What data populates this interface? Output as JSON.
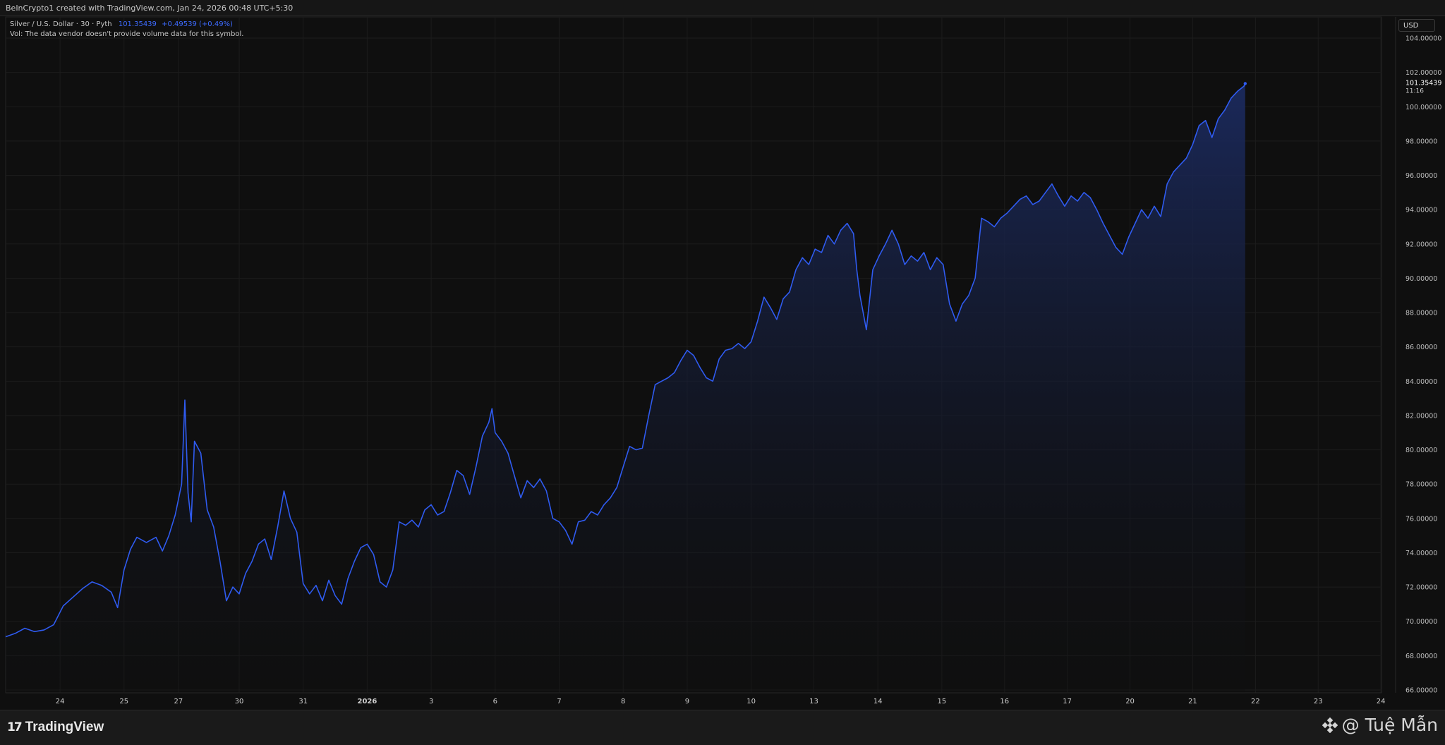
{
  "header": {
    "credit": "BeInCrypto1 created with TradingView.com, Jan 24, 2026 00:48 UTC+5:30"
  },
  "legend": {
    "symbol": "Silver / U.S. Dollar · 30 · Pyth",
    "price": "101.35439",
    "change": "+0.49539 (+0.49%)",
    "volume_note": "Vol: The data vendor doesn't provide volume data for this symbol."
  },
  "currency_button": "USD",
  "last_price": {
    "value": "101.35439",
    "countdown": "11:16"
  },
  "footer": {
    "brand": "TradingView",
    "watermark": "@ Tuệ Mẫn"
  },
  "colors": {
    "line": "#2f5bf0",
    "background": "#0f0f0f",
    "grid": "#1c1c1c",
    "fill_top": "#1b2a5e"
  },
  "chart_data": {
    "type": "area",
    "title": "",
    "xlabel": "",
    "ylabel": "",
    "ylim": [
      66,
      104
    ],
    "y_ticks": [
      "104.00000",
      "102.00000",
      "100.00000",
      "98.00000",
      "96.00000",
      "94.00000",
      "92.00000",
      "90.00000",
      "88.00000",
      "86.00000",
      "84.00000",
      "82.00000",
      "80.00000",
      "78.00000",
      "76.00000",
      "74.00000",
      "72.00000",
      "70.00000",
      "68.00000",
      "66.00000"
    ],
    "x_ticks": [
      {
        "label": "24",
        "x": 1.0
      },
      {
        "label": "25",
        "x": 2.0
      },
      {
        "label": "27",
        "x": 2.85
      },
      {
        "label": "30",
        "x": 3.8
      },
      {
        "label": "31",
        "x": 4.8
      },
      {
        "label": "2026",
        "x": 5.8
      },
      {
        "label": "3",
        "x": 6.8
      },
      {
        "label": "6",
        "x": 7.8
      },
      {
        "label": "7",
        "x": 8.8
      },
      {
        "label": "8",
        "x": 9.8
      },
      {
        "label": "9",
        "x": 10.8
      },
      {
        "label": "10",
        "x": 11.8
      },
      {
        "label": "13",
        "x": 12.78
      },
      {
        "label": "14",
        "x": 13.78
      },
      {
        "label": "15",
        "x": 14.78
      },
      {
        "label": "16",
        "x": 15.76
      },
      {
        "label": "17",
        "x": 16.74
      },
      {
        "label": "20",
        "x": 17.72
      },
      {
        "label": "21",
        "x": 18.7
      },
      {
        "label": "22",
        "x": 19.68
      },
      {
        "label": "23",
        "x": 20.66
      },
      {
        "label": "24",
        "x": 21.64
      }
    ],
    "xlim": [
      0.15,
      21.65
    ],
    "series": [
      {
        "name": "",
        "points": [
          [
            0.15,
            69.1
          ],
          [
            0.3,
            69.3
          ],
          [
            0.45,
            69.6
          ],
          [
            0.6,
            69.4
          ],
          [
            0.75,
            69.5
          ],
          [
            0.9,
            69.8
          ],
          [
            1.05,
            70.9
          ],
          [
            1.2,
            71.4
          ],
          [
            1.35,
            71.9
          ],
          [
            1.5,
            72.3
          ],
          [
            1.65,
            72.1
          ],
          [
            1.8,
            71.7
          ],
          [
            1.9,
            70.8
          ],
          [
            2.0,
            73.0
          ],
          [
            2.1,
            74.2
          ],
          [
            2.2,
            74.9
          ],
          [
            2.35,
            74.6
          ],
          [
            2.5,
            74.9
          ],
          [
            2.6,
            74.1
          ],
          [
            2.7,
            75.0
          ],
          [
            2.8,
            76.2
          ],
          [
            2.9,
            78.0
          ],
          [
            2.95,
            82.9
          ],
          [
            3.0,
            77.5
          ],
          [
            3.05,
            75.8
          ],
          [
            3.1,
            80.5
          ],
          [
            3.2,
            79.8
          ],
          [
            3.3,
            76.5
          ],
          [
            3.4,
            75.5
          ],
          [
            3.5,
            73.5
          ],
          [
            3.6,
            71.2
          ],
          [
            3.7,
            72.0
          ],
          [
            3.8,
            71.6
          ],
          [
            3.9,
            72.8
          ],
          [
            4.0,
            73.5
          ],
          [
            4.1,
            74.5
          ],
          [
            4.2,
            74.8
          ],
          [
            4.3,
            73.6
          ],
          [
            4.4,
            75.5
          ],
          [
            4.5,
            77.6
          ],
          [
            4.6,
            76.0
          ],
          [
            4.7,
            75.2
          ],
          [
            4.8,
            72.2
          ],
          [
            4.9,
            71.6
          ],
          [
            5.0,
            72.1
          ],
          [
            5.1,
            71.2
          ],
          [
            5.2,
            72.4
          ],
          [
            5.3,
            71.5
          ],
          [
            5.4,
            71.0
          ],
          [
            5.5,
            72.5
          ],
          [
            5.6,
            73.5
          ],
          [
            5.7,
            74.3
          ],
          [
            5.8,
            74.5
          ],
          [
            5.9,
            73.9
          ],
          [
            6.0,
            72.3
          ],
          [
            6.1,
            72.0
          ],
          [
            6.2,
            73.0
          ],
          [
            6.3,
            75.8
          ],
          [
            6.4,
            75.6
          ],
          [
            6.5,
            75.9
          ],
          [
            6.6,
            75.5
          ],
          [
            6.7,
            76.5
          ],
          [
            6.8,
            76.8
          ],
          [
            6.9,
            76.2
          ],
          [
            7.0,
            76.4
          ],
          [
            7.1,
            77.5
          ],
          [
            7.2,
            78.8
          ],
          [
            7.3,
            78.5
          ],
          [
            7.4,
            77.4
          ],
          [
            7.5,
            79.0
          ],
          [
            7.6,
            80.8
          ],
          [
            7.7,
            81.6
          ],
          [
            7.75,
            82.4
          ],
          [
            7.8,
            81.0
          ],
          [
            7.9,
            80.5
          ],
          [
            8.0,
            79.8
          ],
          [
            8.1,
            78.5
          ],
          [
            8.2,
            77.2
          ],
          [
            8.3,
            78.2
          ],
          [
            8.4,
            77.8
          ],
          [
            8.5,
            78.3
          ],
          [
            8.6,
            77.6
          ],
          [
            8.7,
            76.0
          ],
          [
            8.8,
            75.8
          ],
          [
            8.9,
            75.3
          ],
          [
            9.0,
            74.5
          ],
          [
            9.1,
            75.8
          ],
          [
            9.2,
            75.9
          ],
          [
            9.3,
            76.4
          ],
          [
            9.4,
            76.2
          ],
          [
            9.5,
            76.8
          ],
          [
            9.6,
            77.2
          ],
          [
            9.7,
            77.8
          ],
          [
            9.8,
            79.0
          ],
          [
            9.9,
            80.2
          ],
          [
            10.0,
            80.0
          ],
          [
            10.1,
            80.1
          ],
          [
            10.2,
            82.0
          ],
          [
            10.3,
            83.8
          ],
          [
            10.4,
            84.0
          ],
          [
            10.5,
            84.2
          ],
          [
            10.6,
            84.5
          ],
          [
            10.7,
            85.2
          ],
          [
            10.8,
            85.8
          ],
          [
            10.9,
            85.5
          ],
          [
            11.0,
            84.8
          ],
          [
            11.1,
            84.2
          ],
          [
            11.2,
            84.0
          ],
          [
            11.3,
            85.3
          ],
          [
            11.4,
            85.8
          ],
          [
            11.5,
            85.9
          ],
          [
            11.6,
            86.2
          ],
          [
            11.7,
            85.9
          ],
          [
            11.8,
            86.3
          ],
          [
            11.9,
            87.5
          ],
          [
            12.0,
            88.9
          ],
          [
            12.1,
            88.3
          ],
          [
            12.2,
            87.6
          ],
          [
            12.3,
            88.8
          ],
          [
            12.4,
            89.2
          ],
          [
            12.5,
            90.5
          ],
          [
            12.6,
            91.2
          ],
          [
            12.7,
            90.8
          ],
          [
            12.8,
            91.7
          ],
          [
            12.9,
            91.5
          ],
          [
            13.0,
            92.5
          ],
          [
            13.1,
            92.0
          ],
          [
            13.2,
            92.8
          ],
          [
            13.3,
            93.2
          ],
          [
            13.4,
            92.6
          ],
          [
            13.45,
            90.5
          ],
          [
            13.5,
            89.0
          ],
          [
            13.6,
            87.0
          ],
          [
            13.7,
            90.5
          ],
          [
            13.8,
            91.3
          ],
          [
            13.9,
            92.0
          ],
          [
            14.0,
            92.8
          ],
          [
            14.1,
            92.0
          ],
          [
            14.2,
            90.8
          ],
          [
            14.3,
            91.3
          ],
          [
            14.4,
            91.0
          ],
          [
            14.5,
            91.5
          ],
          [
            14.6,
            90.5
          ],
          [
            14.7,
            91.2
          ],
          [
            14.8,
            90.8
          ],
          [
            14.9,
            88.5
          ],
          [
            15.0,
            87.5
          ],
          [
            15.1,
            88.5
          ],
          [
            15.2,
            89.0
          ],
          [
            15.3,
            90.0
          ],
          [
            15.4,
            93.5
          ],
          [
            15.5,
            93.3
          ],
          [
            15.6,
            93.0
          ],
          [
            15.7,
            93.5
          ],
          [
            15.8,
            93.8
          ],
          [
            15.9,
            94.2
          ],
          [
            16.0,
            94.6
          ],
          [
            16.1,
            94.8
          ],
          [
            16.2,
            94.3
          ],
          [
            16.3,
            94.5
          ],
          [
            16.4,
            95.0
          ],
          [
            16.5,
            95.5
          ],
          [
            16.6,
            94.8
          ],
          [
            16.7,
            94.2
          ],
          [
            16.8,
            94.8
          ],
          [
            16.9,
            94.5
          ],
          [
            17.0,
            95.0
          ],
          [
            17.1,
            94.7
          ],
          [
            17.2,
            94.0
          ],
          [
            17.3,
            93.2
          ],
          [
            17.4,
            92.5
          ],
          [
            17.5,
            91.8
          ],
          [
            17.6,
            91.4
          ],
          [
            17.7,
            92.4
          ],
          [
            17.8,
            93.2
          ],
          [
            17.9,
            94.0
          ],
          [
            18.0,
            93.5
          ],
          [
            18.1,
            94.2
          ],
          [
            18.2,
            93.6
          ],
          [
            18.3,
            95.5
          ],
          [
            18.4,
            96.2
          ],
          [
            18.5,
            96.6
          ],
          [
            18.6,
            97.0
          ],
          [
            18.7,
            97.8
          ],
          [
            18.8,
            98.9
          ],
          [
            18.9,
            99.2
          ],
          [
            19.0,
            98.2
          ],
          [
            19.1,
            99.3
          ],
          [
            19.2,
            99.8
          ],
          [
            19.3,
            100.5
          ],
          [
            19.4,
            100.9
          ],
          [
            19.5,
            101.2
          ],
          [
            19.52,
            101.35
          ]
        ]
      }
    ]
  }
}
